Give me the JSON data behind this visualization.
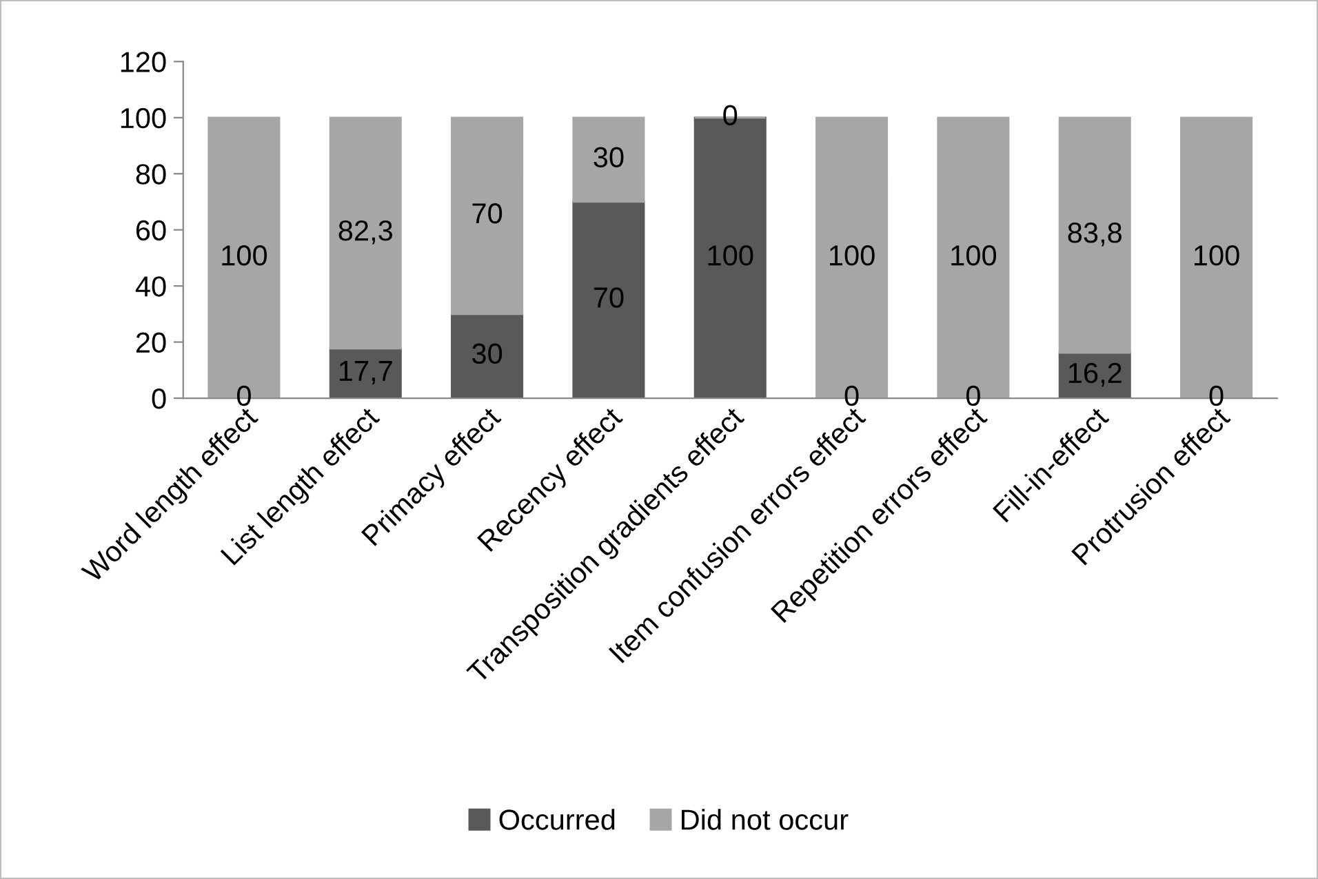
{
  "chart_data": {
    "type": "bar",
    "stacked": true,
    "categories": [
      "Word length effect",
      "List length effect",
      "Primacy effect",
      "Recency effect",
      "Transposition gradients effect",
      "Item confusion errors effect",
      "Repetition errors effect",
      "Fill-in-effect",
      "Protrusion effect"
    ],
    "series": [
      {
        "name": "Occurred",
        "color": "#595959",
        "values": [
          0,
          17.7,
          30,
          70,
          100,
          0,
          0,
          16.2,
          0
        ],
        "value_labels": [
          "0",
          "17,7",
          "30",
          "70",
          "100",
          "0",
          "0",
          "16,2",
          "0"
        ]
      },
      {
        "name": "Did not occur",
        "color": "#a6a6a6",
        "values": [
          100,
          82.3,
          70,
          30,
          0,
          100,
          100,
          83.8,
          100
        ],
        "value_labels": [
          "100",
          "82,3",
          "70",
          "30",
          "0",
          "100",
          "100",
          "83,8",
          "100"
        ]
      }
    ],
    "ylim": [
      0,
      120
    ],
    "yticks": [
      0,
      20,
      40,
      60,
      80,
      100,
      120
    ],
    "grid": false,
    "legend": "bottom"
  }
}
